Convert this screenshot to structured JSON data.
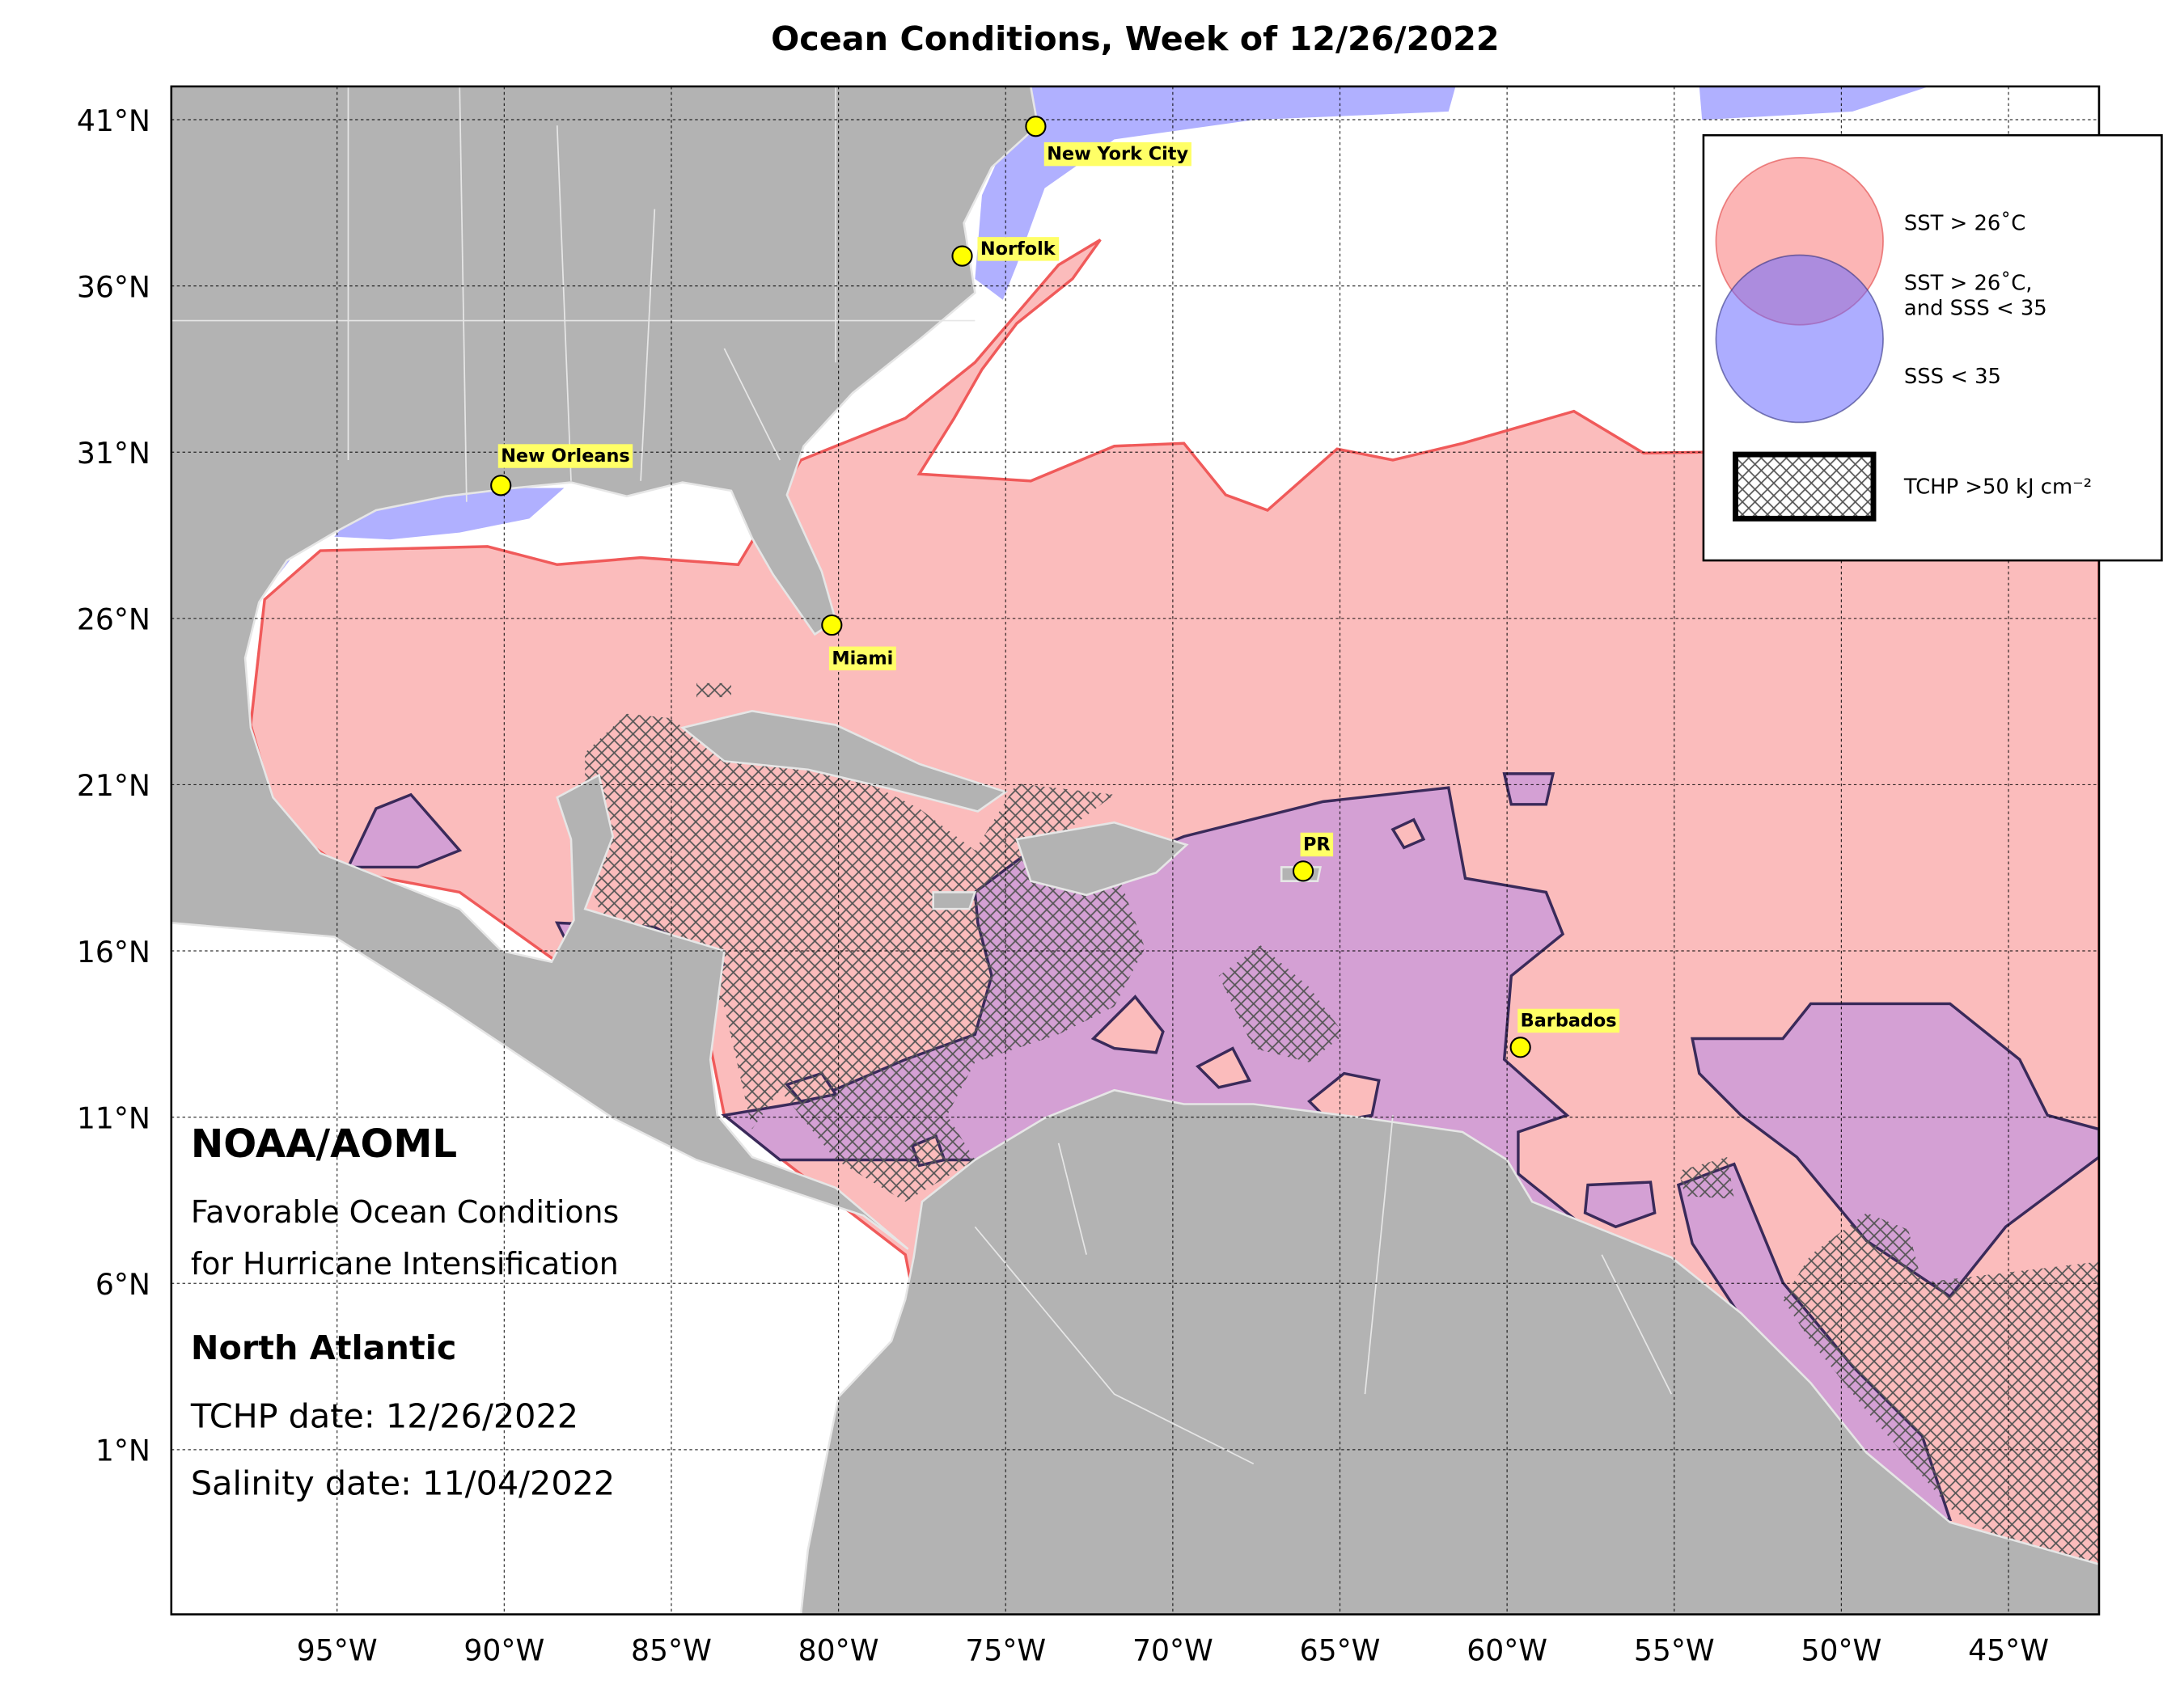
{
  "title": "Ocean Conditions, Week of 12/26/2022",
  "axes": {
    "lat_ticks": [
      {
        "value": 41,
        "label": "41°N"
      },
      {
        "value": 36,
        "label": "36°N"
      },
      {
        "value": 31,
        "label": "31°N"
      },
      {
        "value": 26,
        "label": "26°N"
      },
      {
        "value": 21,
        "label": "21°N"
      },
      {
        "value": 16,
        "label": "16°N"
      },
      {
        "value": 11,
        "label": "11°N"
      },
      {
        "value": 6,
        "label": "6°N"
      },
      {
        "value": 1,
        "label": "1°N"
      }
    ],
    "lon_ticks": [
      {
        "value": -95,
        "label": "95°W"
      },
      {
        "value": -90,
        "label": "90°W"
      },
      {
        "value": -85,
        "label": "85°W"
      },
      {
        "value": -80,
        "label": "80°W"
      },
      {
        "value": -75,
        "label": "75°W"
      },
      {
        "value": -70,
        "label": "70°W"
      },
      {
        "value": -65,
        "label": "65°W"
      },
      {
        "value": -60,
        "label": "60°W"
      },
      {
        "value": -55,
        "label": "55°W"
      },
      {
        "value": -50,
        "label": "50°W"
      },
      {
        "value": -45,
        "label": "45°W"
      }
    ]
  },
  "cities": [
    {
      "name": "New York City",
      "lon": -74.1,
      "lat": 40.8
    },
    {
      "name": "Norfolk",
      "lon": -76.3,
      "lat": 36.9
    },
    {
      "name": "New Orleans",
      "lon": -90.1,
      "lat": 30.0
    },
    {
      "name": "Miami",
      "lon": -80.2,
      "lat": 25.8
    },
    {
      "name": "PR",
      "lon": -66.1,
      "lat": 18.4
    },
    {
      "name": "Barbados",
      "lon": -59.6,
      "lat": 13.1
    }
  ],
  "legend": {
    "sst": "SST > 26˚C",
    "both_line1": "SST > 26˚C,",
    "both_line2": "and SSS < 35",
    "sss": "SSS < 35",
    "tchp": "TCHP >50 kJ cm⁻²"
  },
  "info": {
    "org": "NOAA/AOML",
    "subtitle_line1": "Favorable Ocean Conditions",
    "subtitle_line2": "for Hurricane Intensification",
    "region": "North Atlantic",
    "tchp_date": "TCHP date: 12/26/2022",
    "salinity_date": "Salinity date: 11/04/2022"
  }
}
